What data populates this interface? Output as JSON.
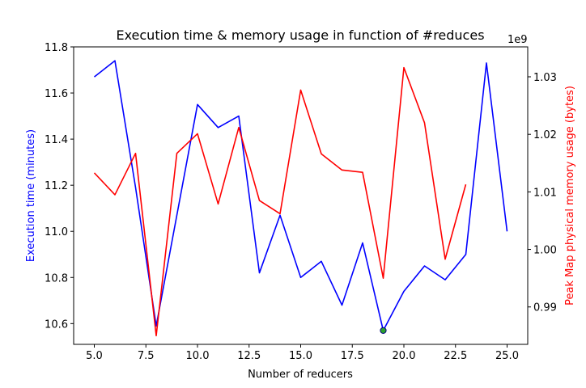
{
  "chart_data": {
    "type": "line",
    "title": "Execution time & memory usage in function of #reduces",
    "xlabel": "Number of reducers",
    "ylabel_left": "Execution time (minutes)",
    "ylabel_right": "Peak Map physical memory usage (bytes)",
    "right_axis_multiplier": "1e9",
    "xlim": [
      4.0,
      26.0
    ],
    "ylim_left": [
      10.51,
      11.8
    ],
    "ylim_right": [
      0.9835,
      1.0352
    ],
    "xticks": [
      5.0,
      7.5,
      10.0,
      12.5,
      15.0,
      17.5,
      20.0,
      22.5,
      25.0
    ],
    "xtick_labels": [
      "5.0",
      "7.5",
      "10.0",
      "12.5",
      "15.0",
      "17.5",
      "20.0",
      "22.5",
      "25.0"
    ],
    "yticks_left": [
      10.6,
      10.8,
      11.0,
      11.2,
      11.4,
      11.6,
      11.8
    ],
    "ytick_labels_left": [
      "10.6",
      "10.8",
      "11.0",
      "11.2",
      "11.4",
      "11.6",
      "11.8"
    ],
    "yticks_right": [
      0.99,
      1.0,
      1.01,
      1.02,
      1.03
    ],
    "ytick_labels_right": [
      "0.99",
      "1.00",
      "1.01",
      "1.02",
      "1.03"
    ],
    "grid": false,
    "series": [
      {
        "axis": "left",
        "color": "#0000ff",
        "x": [
          5,
          6,
          7,
          8,
          9,
          10,
          11,
          12,
          13,
          14,
          15,
          16,
          17,
          18,
          19,
          20,
          21,
          22,
          23,
          24,
          25
        ],
        "values": [
          11.67,
          11.74,
          11.19,
          10.59,
          11.07,
          11.55,
          11.45,
          11.5,
          10.82,
          11.07,
          10.8,
          10.87,
          10.68,
          10.95,
          10.57,
          10.74,
          10.85,
          10.79,
          10.9,
          11.73,
          11.0
        ]
      },
      {
        "axis": "right",
        "color": "#ff0000",
        "x": [
          5,
          6,
          7,
          8,
          9,
          10,
          11,
          12,
          13,
          14,
          15,
          16,
          17,
          18,
          19,
          20,
          21,
          22,
          23
        ],
        "values": [
          1.0133,
          1.0095,
          1.0167,
          0.985,
          1.0167,
          1.0201,
          1.0079,
          1.0212,
          1.0085,
          1.0062,
          1.0277,
          1.0166,
          1.0138,
          1.0134,
          0.995,
          1.0316,
          1.022,
          0.9983,
          1.0113
        ]
      }
    ],
    "highlight_point": {
      "x": 19,
      "y": 10.57,
      "axis": "left",
      "color": "#2ca02c",
      "edge_color": "#000080"
    }
  }
}
